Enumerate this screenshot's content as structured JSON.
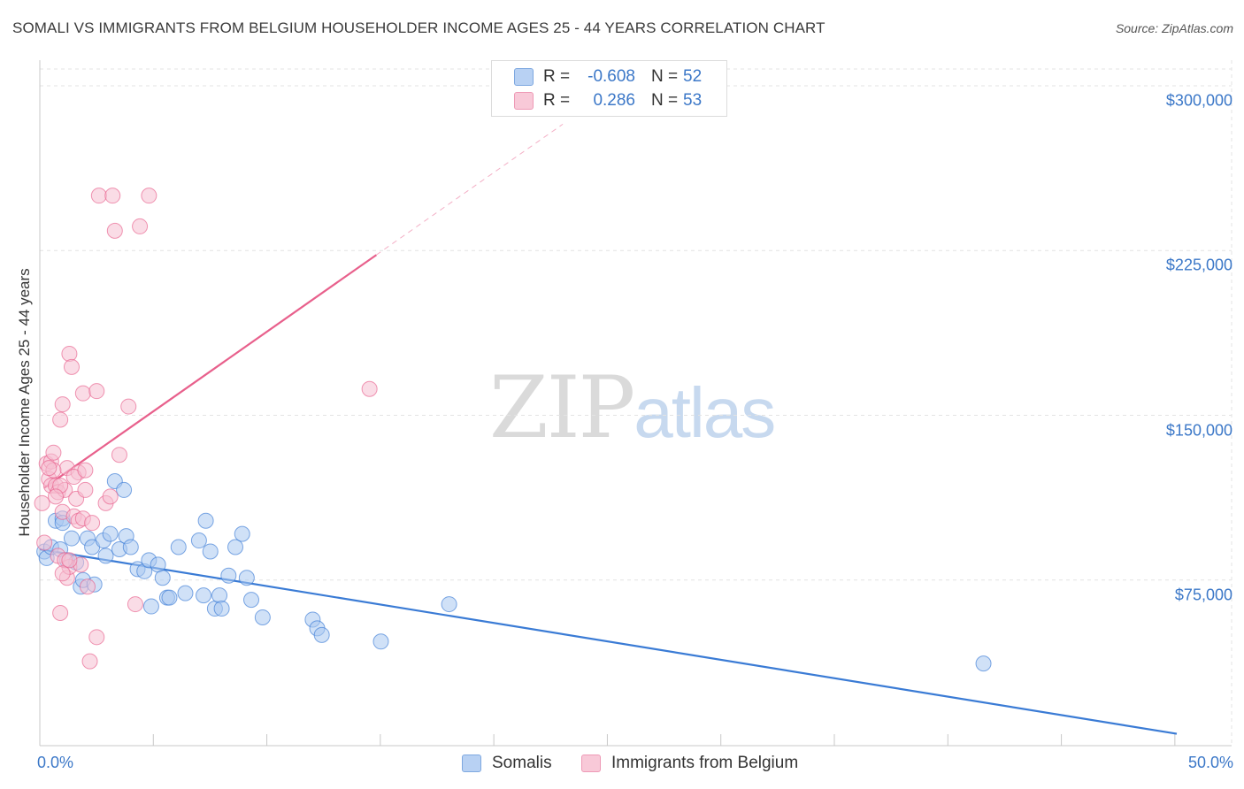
{
  "title": "SOMALI VS IMMIGRANTS FROM BELGIUM HOUSEHOLDER INCOME AGES 25 - 44 YEARS CORRELATION CHART",
  "source": "Source: ZipAtlas.com",
  "watermark": {
    "zip": "ZIP",
    "atlas": "atlas"
  },
  "colors": {
    "blue": "#3a7bd5",
    "pink": "#e8608c",
    "blue_fill": "#a9c8f0",
    "pink_fill": "#f6bfd1",
    "tick_text": "#3c78c8"
  },
  "legend": {
    "rows": [
      {
        "series": "Somalis",
        "r_label": "R =",
        "r_value": "-0.608",
        "n_label": "N =",
        "n_value": "52",
        "color": "#3a7bd5"
      },
      {
        "series": "Immigrants from Belgium",
        "r_label": "R =",
        "r_value": "0.286",
        "n_label": "N =",
        "n_value": "53",
        "color": "#e8608c"
      }
    ],
    "bottom": [
      "Somalis",
      "Immigrants from Belgium"
    ]
  },
  "chart_data": {
    "type": "scatter",
    "title": "SOMALI VS IMMIGRANTS FROM BELGIUM HOUSEHOLDER INCOME AGES 25 - 44 YEARS CORRELATION CHART",
    "xlabel": "",
    "ylabel": "Householder Income Ages 25 - 44 years",
    "xlim": [
      0,
      50
    ],
    "ylim": [
      0,
      300000
    ],
    "x_tick_labels": [
      "0.0%",
      "50.0%"
    ],
    "y_ticks": [
      75000,
      150000,
      225000,
      300000
    ],
    "y_tick_labels": [
      "$75,000",
      "$150,000",
      "$225,000",
      "$300,000"
    ],
    "grid": true,
    "series": [
      {
        "name": "Somalis",
        "color": "#3a7bd5",
        "trend": {
          "x": [
            0.0,
            50.0
          ],
          "y": [
            89000,
            5000
          ],
          "dashed_x": null
        },
        "points": [
          [
            0.2,
            88000
          ],
          [
            0.3,
            85000
          ],
          [
            0.5,
            90000
          ],
          [
            0.7,
            102000
          ],
          [
            0.9,
            89000
          ],
          [
            1.0,
            103000
          ],
          [
            1.2,
            84000
          ],
          [
            1.4,
            94000
          ],
          [
            1.6,
            83000
          ],
          [
            1.8,
            72000
          ],
          [
            1.9,
            75000
          ],
          [
            2.1,
            94000
          ],
          [
            2.3,
            90000
          ],
          [
            2.4,
            73000
          ],
          [
            2.8,
            93000
          ],
          [
            2.9,
            86000
          ],
          [
            3.1,
            96000
          ],
          [
            3.3,
            120000
          ],
          [
            3.5,
            89000
          ],
          [
            3.7,
            116000
          ],
          [
            3.8,
            95000
          ],
          [
            4.0,
            90000
          ],
          [
            4.3,
            80000
          ],
          [
            4.6,
            79000
          ],
          [
            4.8,
            84000
          ],
          [
            4.9,
            63000
          ],
          [
            5.2,
            82000
          ],
          [
            5.4,
            76000
          ],
          [
            5.6,
            67000
          ],
          [
            5.7,
            67000
          ],
          [
            6.1,
            90000
          ],
          [
            6.4,
            69000
          ],
          [
            7.0,
            93000
          ],
          [
            7.2,
            68000
          ],
          [
            7.3,
            102000
          ],
          [
            7.5,
            88000
          ],
          [
            7.7,
            62000
          ],
          [
            7.9,
            68000
          ],
          [
            8.0,
            62000
          ],
          [
            8.3,
            77000
          ],
          [
            8.6,
            90000
          ],
          [
            8.9,
            96000
          ],
          [
            9.1,
            76000
          ],
          [
            9.3,
            66000
          ],
          [
            9.8,
            58000
          ],
          [
            12.0,
            57000
          ],
          [
            12.2,
            53000
          ],
          [
            12.4,
            50000
          ],
          [
            15.0,
            47000
          ],
          [
            18.0,
            64000
          ],
          [
            41.5,
            37000
          ],
          [
            1.0,
            101000
          ]
        ]
      },
      {
        "name": "Immigrants from Belgium",
        "color": "#e8608c",
        "trend": {
          "x": [
            0.2,
            14.8
          ],
          "y": [
            117000,
            223000
          ],
          "dashed_x": [
            14.8,
            23.0
          ]
        },
        "points": [
          [
            0.1,
            110000
          ],
          [
            0.2,
            92000
          ],
          [
            0.3,
            128000
          ],
          [
            0.4,
            121000
          ],
          [
            0.5,
            118000
          ],
          [
            0.5,
            129000
          ],
          [
            0.6,
            133000
          ],
          [
            0.7,
            118000
          ],
          [
            0.8,
            115000
          ],
          [
            0.8,
            86000
          ],
          [
            0.9,
            148000
          ],
          [
            0.9,
            60000
          ],
          [
            1.0,
            155000
          ],
          [
            1.0,
            106000
          ],
          [
            1.1,
            116000
          ],
          [
            1.2,
            76000
          ],
          [
            1.2,
            126000
          ],
          [
            1.3,
            178000
          ],
          [
            1.3,
            81000
          ],
          [
            1.4,
            172000
          ],
          [
            1.5,
            104000
          ],
          [
            1.6,
            112000
          ],
          [
            1.7,
            124000
          ],
          [
            1.7,
            102000
          ],
          [
            1.8,
            82000
          ],
          [
            1.9,
            160000
          ],
          [
            1.9,
            103000
          ],
          [
            2.0,
            116000
          ],
          [
            2.1,
            72000
          ],
          [
            2.2,
            38000
          ],
          [
            2.3,
            101000
          ],
          [
            2.5,
            161000
          ],
          [
            2.5,
            49000
          ],
          [
            2.6,
            250000
          ],
          [
            2.9,
            110000
          ],
          [
            3.1,
            113000
          ],
          [
            3.2,
            250000
          ],
          [
            3.3,
            234000
          ],
          [
            3.5,
            132000
          ],
          [
            3.9,
            154000
          ],
          [
            4.2,
            64000
          ],
          [
            4.4,
            236000
          ],
          [
            4.8,
            250000
          ],
          [
            14.5,
            162000
          ],
          [
            0.6,
            125000
          ],
          [
            0.9,
            118000
          ],
          [
            1.1,
            84000
          ],
          [
            1.3,
            84000
          ],
          [
            1.5,
            122000
          ],
          [
            0.4,
            126000
          ],
          [
            0.7,
            113000
          ],
          [
            2.0,
            125000
          ],
          [
            1.0,
            78000
          ]
        ]
      }
    ]
  }
}
